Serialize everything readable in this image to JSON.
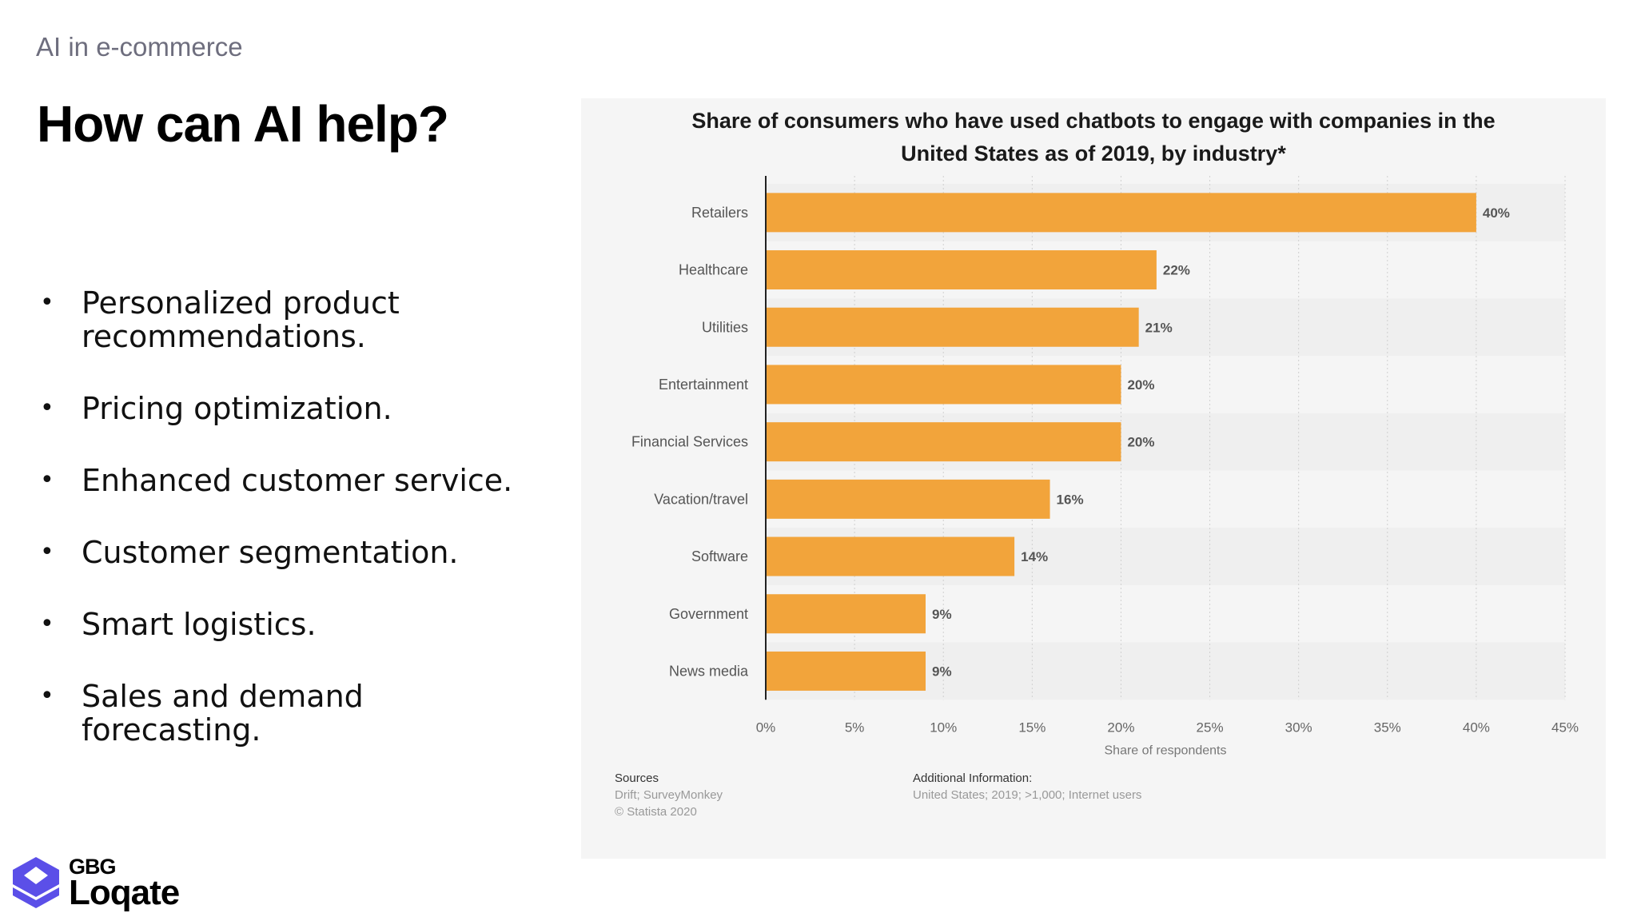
{
  "slide": {
    "kicker": "AI in e-commerce",
    "title": "How can AI help?",
    "bullets": [
      "Personalized product recommendations.",
      "Pricing optimization.",
      "Enhanced customer service.",
      "Customer segmentation.",
      "Smart logistics.",
      "Sales and demand forecasting."
    ]
  },
  "logo": {
    "line1": "GBG",
    "line2": "Loqate",
    "color": "#5b4fe8"
  },
  "chart_data": {
    "type": "bar",
    "orientation": "horizontal",
    "title": "Share of consumers who have used chatbots to engage with companies in the United States as of 2019, by industry*",
    "categories": [
      "Retailers",
      "Healthcare",
      "Utilities",
      "Entertainment",
      "Financial Services",
      "Vacation/travel",
      "Software",
      "Government",
      "News media"
    ],
    "values": [
      40,
      22,
      21,
      20,
      20,
      16,
      14,
      9,
      9
    ],
    "data_labels": [
      "40%",
      "22%",
      "21%",
      "20%",
      "20%",
      "16%",
      "14%",
      "9%",
      "9%"
    ],
    "xlabel": "Share of respondents",
    "xlim": [
      0,
      45
    ],
    "xticks": [
      "0%",
      "5%",
      "10%",
      "15%",
      "20%",
      "25%",
      "30%",
      "35%",
      "40%",
      "45%"
    ],
    "grid": true,
    "bar_color": "#f2a43b"
  },
  "footer": {
    "sources_label": "Sources",
    "sources": "Drift; SurveyMonkey",
    "copyright": "© Statista 2020",
    "info_label": "Additional Information:",
    "info": "United States; 2019; >1,000; Internet users"
  }
}
